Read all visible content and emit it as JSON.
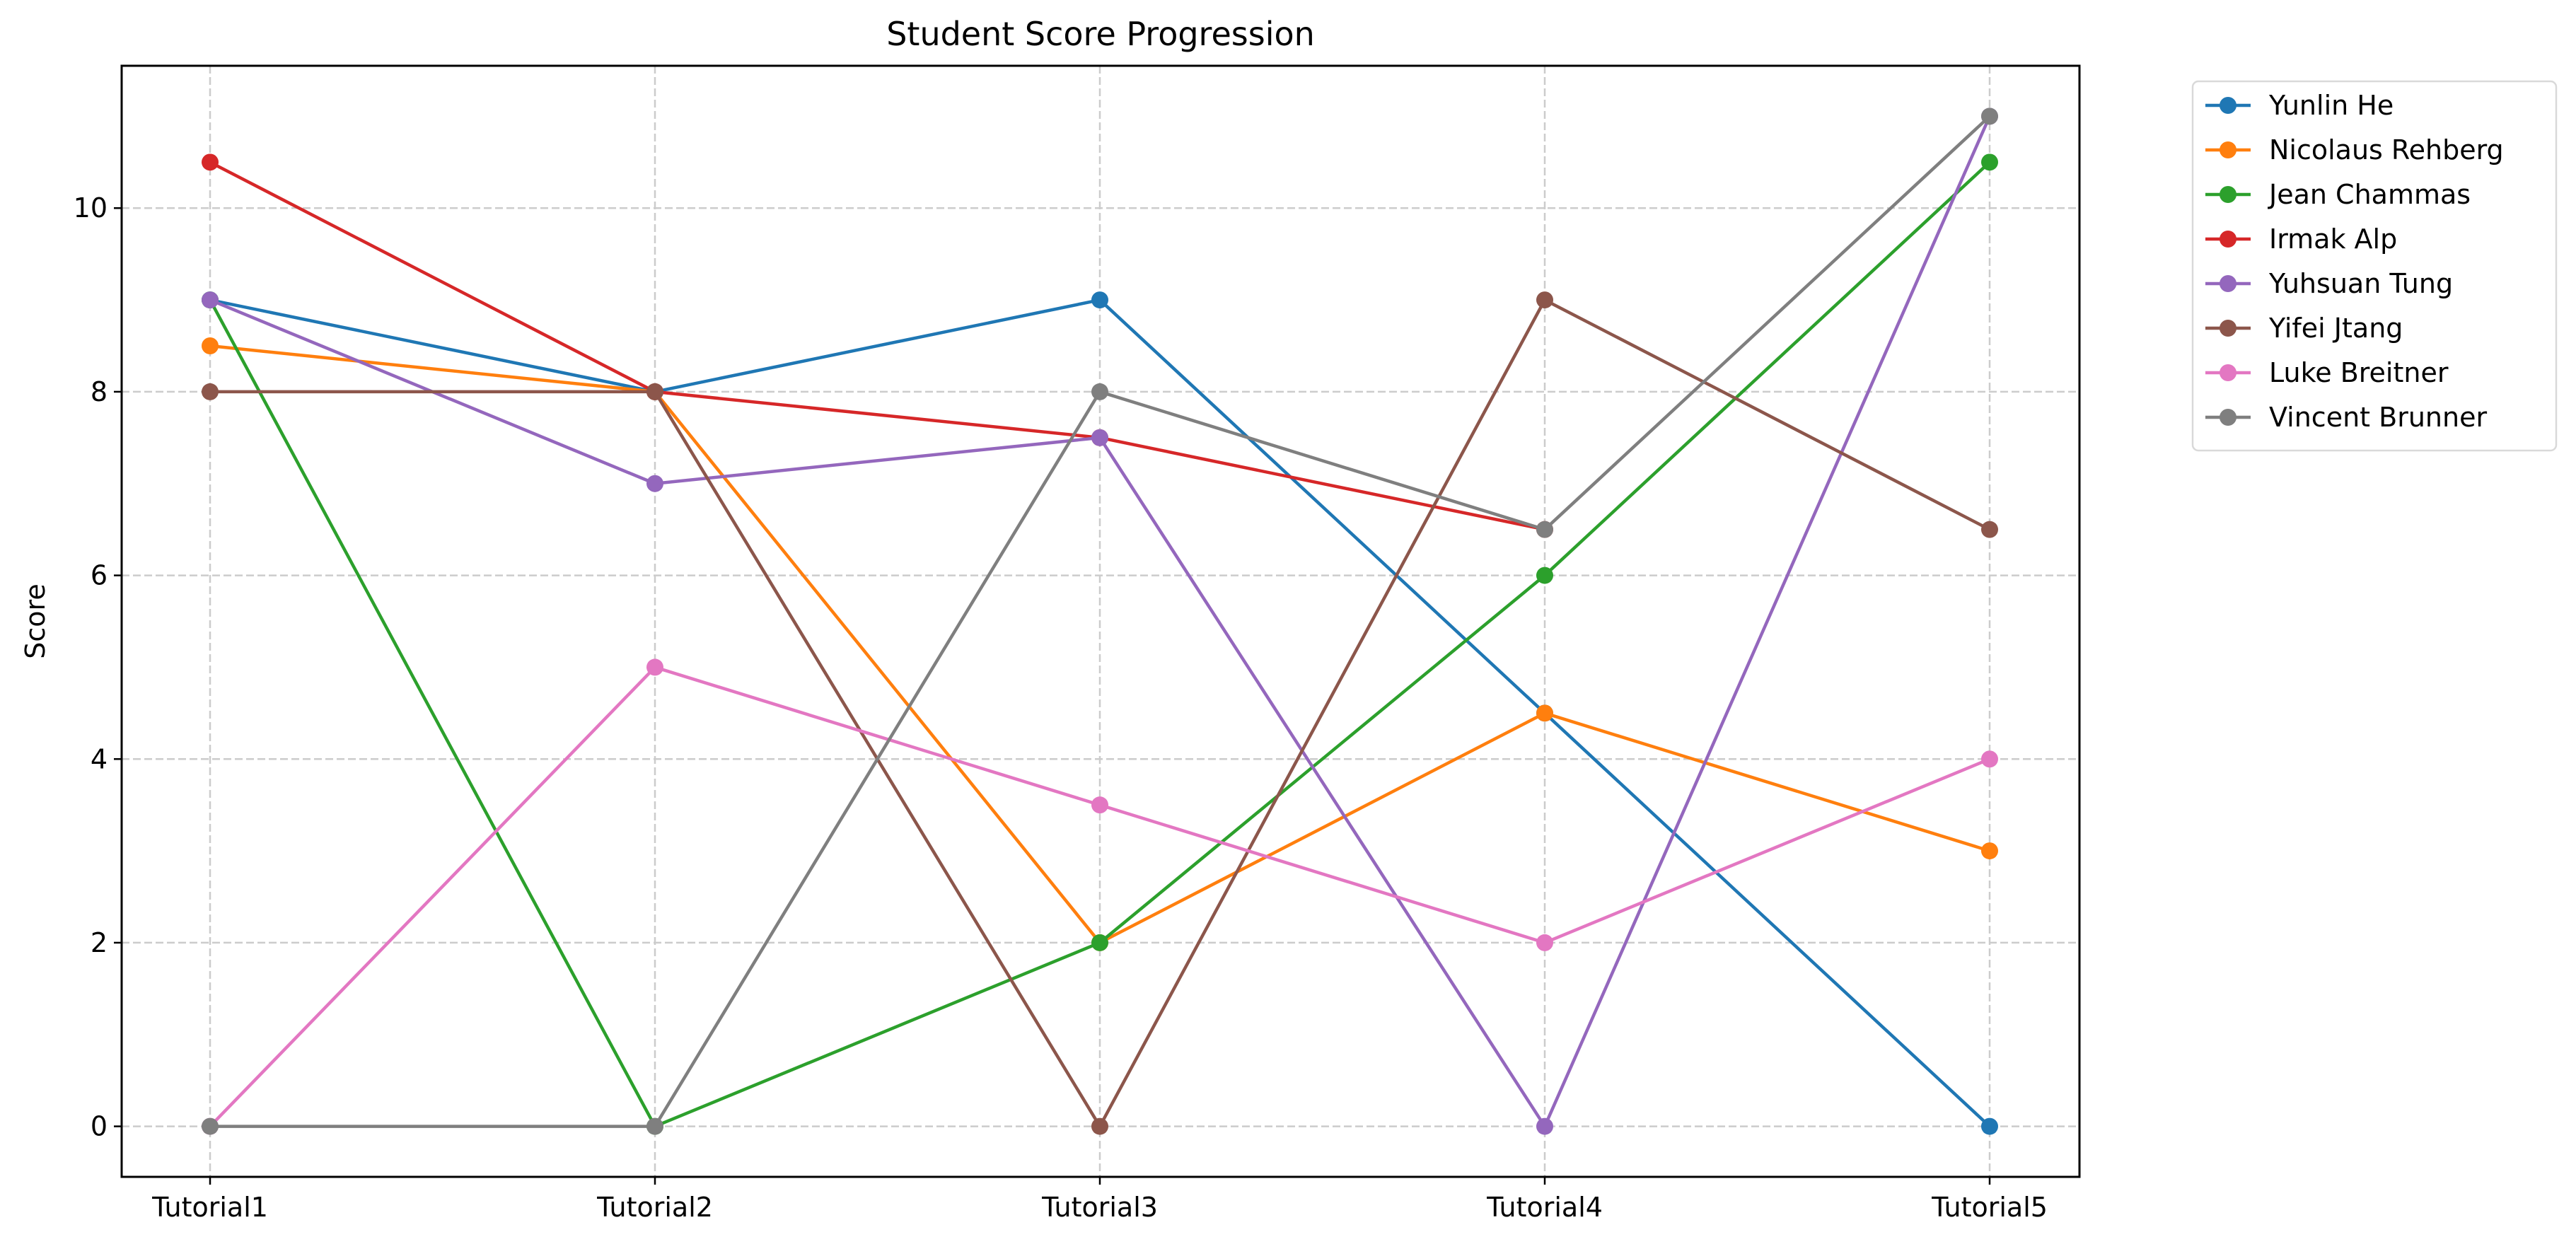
{
  "chart_data": {
    "type": "line",
    "title": "Student Score Progression",
    "xlabel": "",
    "ylabel": "Score",
    "categories": [
      "Tutorial1",
      "Tutorial2",
      "Tutorial3",
      "Tutorial4",
      "Tutorial5"
    ],
    "ylim": [
      -0.55,
      11.55
    ],
    "yticks": [
      "0",
      "2",
      "4",
      "6",
      "8",
      "10"
    ],
    "grid": true,
    "legend_position": "outside-right-top",
    "series": [
      {
        "name": "Yunlin He",
        "color": "#1f77b4",
        "values": [
          9,
          8,
          9,
          4.5,
          0
        ]
      },
      {
        "name": "Nicolaus Rehberg",
        "color": "#ff7f0e",
        "values": [
          8.5,
          8,
          2,
          4.5,
          3
        ]
      },
      {
        "name": "Jean Chammas",
        "color": "#2ca02c",
        "values": [
          9,
          0,
          2,
          6,
          10.5
        ]
      },
      {
        "name": "Irmak Alp",
        "color": "#d62728",
        "values": [
          10.5,
          8,
          7.5,
          6.5,
          null
        ]
      },
      {
        "name": "Yuhsuan Tung",
        "color": "#9467bd",
        "values": [
          9,
          7,
          7.5,
          0,
          11
        ]
      },
      {
        "name": "Yifei Jtang",
        "color": "#8c564b",
        "values": [
          8,
          8,
          0,
          9,
          6.5
        ]
      },
      {
        "name": "Luke Breitner",
        "color": "#e377c2",
        "values": [
          0,
          5,
          3.5,
          2,
          4
        ]
      },
      {
        "name": "Vincent Brunner",
        "color": "#7f7f7f",
        "values": [
          0,
          0,
          8,
          6.5,
          11
        ]
      }
    ]
  }
}
